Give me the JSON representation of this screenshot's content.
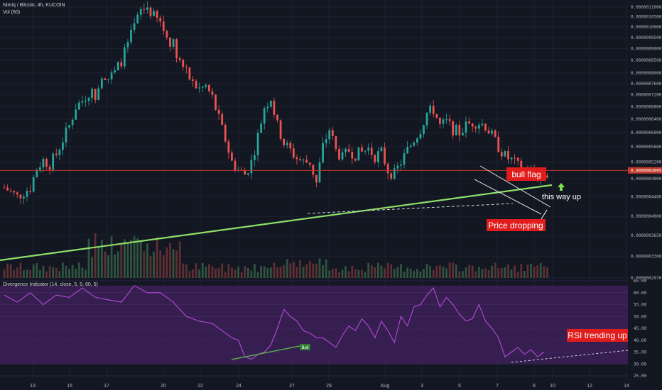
{
  "header": {
    "symbol_line": "Nimiq / Bitcoin, 4h, KUCOIN",
    "volume_line": "Vol (60)",
    "indicator_line": "Divergence Indicator (14, close, 5, 5, 60, 5)"
  },
  "colors": {
    "background": "#131722",
    "up": "#26a69a",
    "down": "#ef5350",
    "trendline": "#8ee06a",
    "rsi_line": "#b14bd4",
    "rsi_band": "#3b1f55",
    "label_red": "#e01c1c",
    "last_price_line": "#c0392b"
  },
  "price_axis": {
    "ticks": [
      "0.0000011000",
      "0.0000010500",
      "0.0000010000",
      "0.0000009500",
      "0.0000009000",
      "0.0000008500",
      "0.0000008000",
      "0.0000007600",
      "0.0000007200",
      "0.0000006800",
      "0.0000006400",
      "0.0000006000",
      "0.0000005600",
      "0.0000005200",
      "0.0000004800",
      "0.0000004400",
      "0.0000004000",
      "0.0000003650",
      "0.0000003300",
      "0.0000002970"
    ],
    "last_price_label": "0.0000004995"
  },
  "rsi_axis": {
    "ticks": [
      "65.00",
      "60.00",
      "55.00",
      "50.00",
      "45.00",
      "40.00",
      "35.00",
      "30.00",
      "25.00"
    ]
  },
  "x_axis": {
    "ticks": [
      "13",
      "15",
      "17",
      "20",
      "22",
      "24",
      "27",
      "29",
      "Aug",
      "3",
      "5",
      "7",
      "8",
      "10",
      "12",
      "14"
    ]
  },
  "annotations": {
    "bull_flag": "bull flag",
    "this_way_up": "this way up",
    "price_dropping": "Price dropping",
    "rsi_trending_up": "RSI trending up",
    "bull_label": "Bull"
  },
  "chart_data": [
    {
      "type": "candlestick",
      "title": "Nimiq / Bitcoin, 4h, KUCOIN",
      "x_labels": [
        "13",
        "15",
        "17",
        "20",
        "22",
        "24",
        "27",
        "29",
        "Aug",
        "3",
        "5",
        "7",
        "8",
        "10",
        "12",
        "14"
      ],
      "y_scale": "log",
      "ylim": [
        2.97e-07,
        1.1e-06
      ],
      "close_path": [
        [
          0,
          4.6e-07
        ],
        [
          2,
          4.5e-07
        ],
        [
          4,
          4.4e-07
        ],
        [
          6,
          4.5e-07
        ],
        [
          8,
          4.6e-07
        ],
        [
          10,
          5.05e-07
        ],
        [
          12,
          5.25e-07
        ],
        [
          14,
          5.15e-07
        ],
        [
          16,
          5.4e-07
        ],
        [
          18,
          5.8e-07
        ],
        [
          20,
          6.2e-07
        ],
        [
          22,
          6.8e-07
        ],
        [
          24,
          7e-07
        ],
        [
          26,
          7.3e-07
        ],
        [
          28,
          7.2e-07
        ],
        [
          30,
          8e-07
        ],
        [
          32,
          7.8e-07
        ],
        [
          34,
          8e-07
        ],
        [
          36,
          8.5e-07
        ],
        [
          38,
          9.2e-07
        ],
        [
          40,
          1e-06
        ],
        [
          42,
          1.08e-06
        ],
        [
          44,
          1.1e-06
        ],
        [
          46,
          1.05e-06
        ],
        [
          48,
          1.02e-06
        ],
        [
          50,
          9.5e-07
        ],
        [
          52,
          9.2e-07
        ],
        [
          54,
          8.5e-07
        ],
        [
          56,
          8e-07
        ],
        [
          58,
          7.6e-07
        ],
        [
          60,
          7.4e-07
        ],
        [
          62,
          7.5e-07
        ],
        [
          64,
          7.1e-07
        ],
        [
          66,
          6.4e-07
        ],
        [
          68,
          5.8e-07
        ],
        [
          70,
          5.2e-07
        ],
        [
          72,
          5e-07
        ],
        [
          74,
          4.9e-07
        ],
        [
          76,
          5.2e-07
        ],
        [
          78,
          5.9e-07
        ],
        [
          80,
          6.8e-07
        ],
        [
          82,
          7.1e-07
        ],
        [
          84,
          6.2e-07
        ],
        [
          86,
          5.7e-07
        ],
        [
          88,
          5.5e-07
        ],
        [
          90,
          5.3e-07
        ],
        [
          92,
          5.2e-07
        ],
        [
          94,
          5.2e-07
        ],
        [
          96,
          4.7e-07
        ],
        [
          98,
          5.6e-07
        ],
        [
          100,
          6.1e-07
        ],
        [
          102,
          5.5e-07
        ],
        [
          104,
          5.3e-07
        ],
        [
          106,
          5.5e-07
        ],
        [
          108,
          5.4e-07
        ],
        [
          110,
          5.45e-07
        ],
        [
          112,
          5.55e-07
        ],
        [
          114,
          5.35e-07
        ],
        [
          116,
          5.45e-07
        ],
        [
          118,
          5e-07
        ],
        [
          120,
          4.9e-07
        ],
        [
          122,
          5.2e-07
        ],
        [
          124,
          5.5e-07
        ],
        [
          126,
          5.8e-07
        ],
        [
          128,
          6.1e-07
        ],
        [
          130,
          6.6e-07
        ],
        [
          132,
          6.7e-07
        ],
        [
          134,
          6.2e-07
        ],
        [
          136,
          6.3e-07
        ],
        [
          138,
          6.1e-07
        ],
        [
          140,
          6e-07
        ],
        [
          142,
          6.2e-07
        ],
        [
          144,
          6.3e-07
        ],
        [
          146,
          6.3e-07
        ],
        [
          148,
          6.2e-07
        ],
        [
          150,
          5.9e-07
        ],
        [
          152,
          5.6e-07
        ],
        [
          154,
          5.35e-07
        ],
        [
          156,
          5.25e-07
        ],
        [
          158,
          5.1e-07
        ],
        [
          160,
          5e-07
        ],
        [
          162,
          4.95e-07
        ],
        [
          164,
          4.85e-07
        ],
        [
          166,
          4.9e-07
        ]
      ],
      "last_price": 4.995e-07
    },
    {
      "type": "bar",
      "title": "Vol (60)",
      "note": "volume histogram under price, no values labeled"
    },
    {
      "type": "line",
      "title": "Divergence Indicator (14, close, 5, 5, 60, 5)",
      "ylim": [
        25,
        65
      ],
      "x": [
        0,
        4,
        8,
        12,
        16,
        20,
        24,
        28,
        32,
        36,
        40,
        44,
        48,
        52,
        56,
        60,
        64,
        68,
        70,
        72,
        74,
        76,
        78,
        80,
        82,
        84,
        86,
        88,
        90,
        92,
        94,
        96,
        98,
        100,
        102,
        104,
        106,
        108,
        110,
        112,
        114,
        116,
        118,
        120,
        122,
        124,
        126,
        128,
        130,
        132,
        134,
        136,
        138,
        140,
        142,
        144,
        146,
        148,
        150,
        152,
        154,
        156,
        158,
        160,
        162,
        164,
        166
      ],
      "values": [
        59,
        56,
        60,
        55,
        59,
        58,
        62,
        58,
        57,
        56,
        63,
        60,
        60,
        56,
        50,
        48,
        47,
        43,
        41,
        40,
        33,
        32,
        34,
        35,
        38,
        45,
        53,
        50,
        48,
        44,
        43,
        41,
        41,
        39,
        37,
        42,
        46,
        44,
        49,
        46,
        41,
        48,
        44,
        39,
        50,
        46,
        54,
        55,
        59,
        62,
        54,
        58,
        55,
        51,
        48,
        49,
        55,
        48,
        45,
        41,
        33,
        35,
        37,
        34,
        36,
        33,
        35
      ]
    }
  ]
}
